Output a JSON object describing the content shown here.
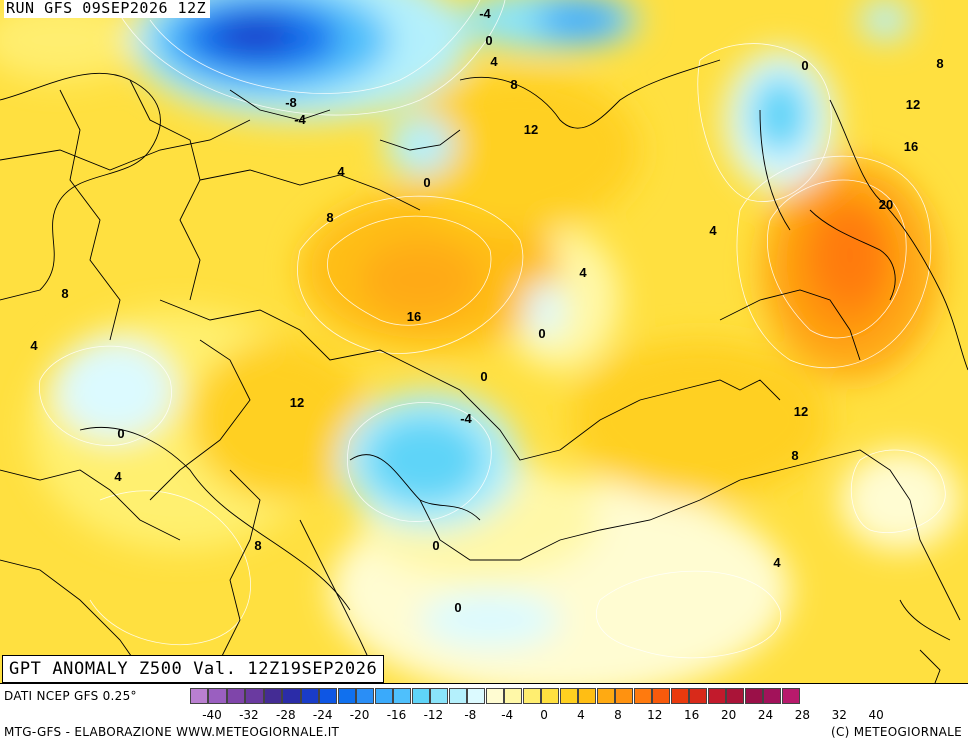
{
  "header": {
    "run": "RUN GFS 09SEP2026 12Z"
  },
  "title": "GPT ANOMALY Z500 Val. 12Z19SEP2026",
  "footer": {
    "data_source": "DATI NCEP GFS 0.25°",
    "credit_left": "MTG-GFS - ELABORAZIONE WWW.METEOGIORNALE.IT",
    "credit_right": "(C) METEOGIORNALE"
  },
  "legend": {
    "colors": [
      "#b97fd0",
      "#9a5fc0",
      "#7f45aa",
      "#6a3aa0",
      "#442c94",
      "#2b2ca8",
      "#1a3cc8",
      "#0e56e4",
      "#1070ee",
      "#2a8ef6",
      "#3aaafb",
      "#4fc0fc",
      "#5fd4f8",
      "#8ae4fa",
      "#b4f0fc",
      "#dcfaff",
      "#fffcd2",
      "#fff8a8",
      "#ffee70",
      "#ffe040",
      "#ffd020",
      "#ffbe14",
      "#ffaa12",
      "#ff9210",
      "#ff7a0e",
      "#f85a0c",
      "#ea3a0e",
      "#d82a1a",
      "#c21a2c",
      "#aa1438",
      "#9a1048",
      "#a2125a",
      "#b81a6c"
    ],
    "ticks": [
      "-40",
      "-32",
      "-28",
      "-24",
      "-20",
      "-16",
      "-12",
      "-8",
      "-4",
      "0",
      "4",
      "8",
      "12",
      "16",
      "20",
      "24",
      "28",
      "32",
      "40"
    ]
  },
  "map_labels": [
    "-4",
    "0",
    "4",
    "8",
    "12",
    "-8",
    "-4",
    "4",
    "0",
    "8",
    "12",
    "16",
    "20",
    "4",
    "4",
    "8",
    "16",
    "0",
    "0",
    "4",
    "8",
    "12",
    "0",
    "-4",
    "12",
    "8",
    "4",
    "8",
    "0",
    "0",
    "4",
    "0",
    "4"
  ]
}
